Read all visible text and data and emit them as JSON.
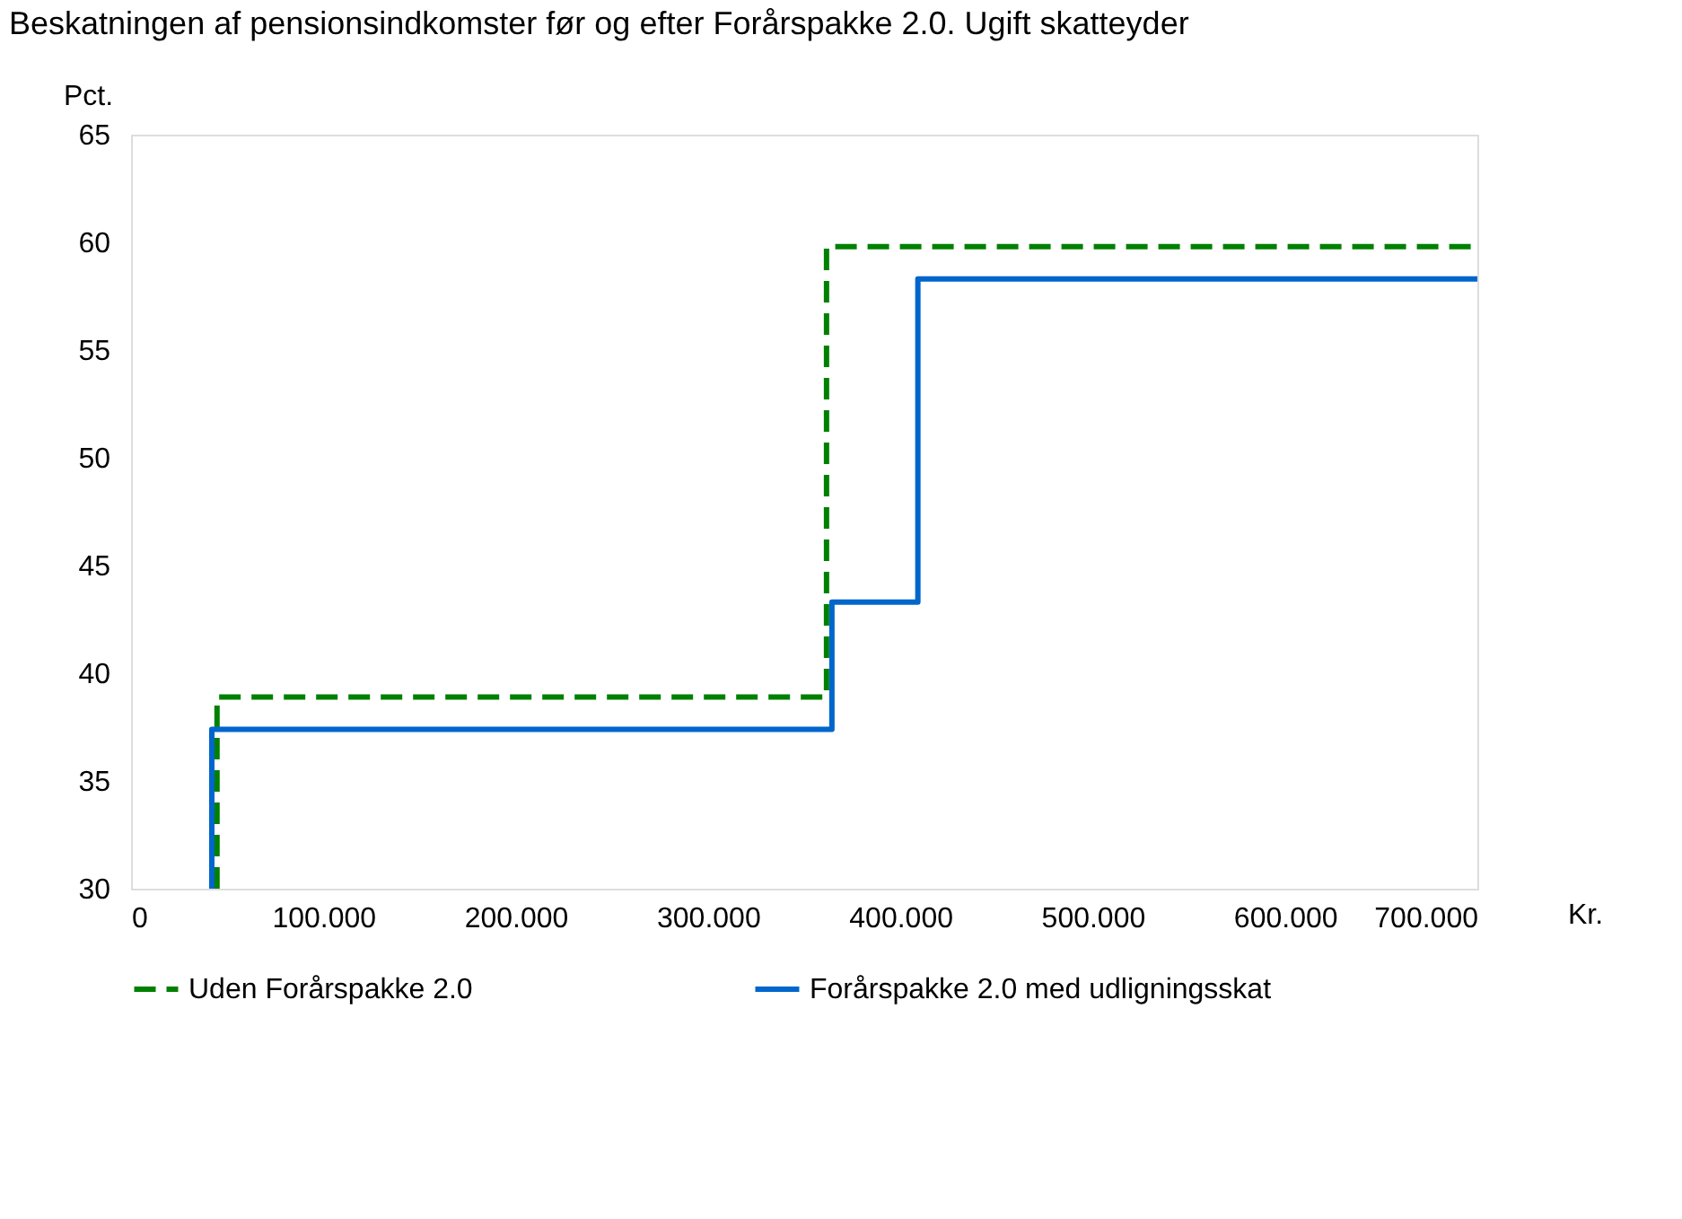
{
  "chart_data": {
    "type": "step",
    "title": "Beskatningen af pensionsindkomster før og efter Forårspakke 2.0. Ugift skatteyder",
    "ylabel": "Pct.",
    "xlabel": "Kr.",
    "xlim": [
      0,
      700
    ],
    "xticks": [
      0,
      {
        "value": 100,
        "label": "100.000"
      },
      {
        "value": 200,
        "label": "200.000"
      },
      {
        "value": 300,
        "label": "300.000"
      },
      {
        "value": 400,
        "label": "400.000"
      },
      {
        "value": 500,
        "label": "500.000"
      },
      {
        "value": 600,
        "label": "600.000"
      },
      {
        "value": 700,
        "label": "700.000"
      }
    ],
    "ylim": [
      30,
      65
    ],
    "yticks": [
      30,
      35,
      40,
      45,
      50,
      55,
      60,
      65
    ],
    "grid": false,
    "legend": "bottom",
    "marker": "none",
    "series": [
      {
        "name": "Uden Forårspakke 2.0",
        "color": "#008000",
        "line_style": "dashed",
        "x": [
          44.7,
          44.7,
          361.6,
          700
        ],
        "values": [
          30,
          38.9,
          59.8,
          59.8
        ]
      },
      {
        "name": "Forårspakke 2.0 med udligningsskat",
        "color": "#0066cc",
        "line_style": "solid",
        "x": [
          42,
          42,
          364.4,
          409.1,
          700
        ],
        "values": [
          30,
          37.4,
          43.3,
          58.3,
          58.3
        ]
      }
    ]
  }
}
